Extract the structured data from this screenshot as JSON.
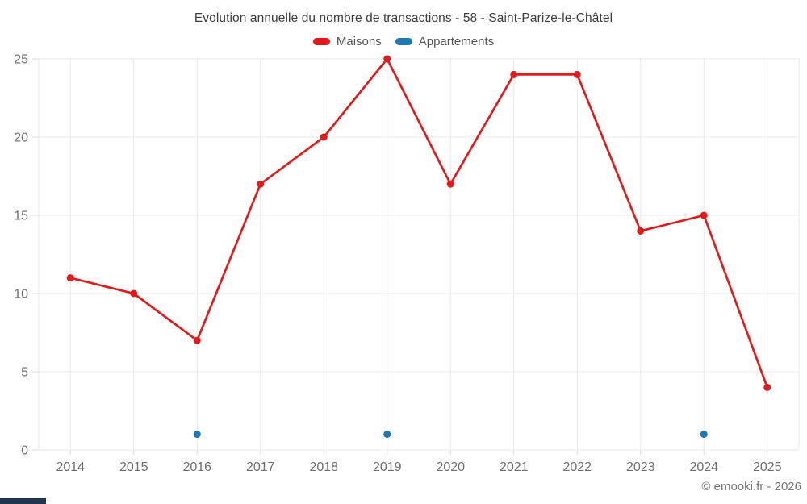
{
  "chart": {
    "title": "Evolution annuelle du nombre de transactions - 58 - Saint-Parize-le-Châtel"
  },
  "chart_data": {
    "type": "line",
    "title": "Evolution annuelle du nombre de transactions - 58 - Saint-Parize-le-Châtel",
    "categories": [
      "2014",
      "2015",
      "2016",
      "2017",
      "2018",
      "2019",
      "2020",
      "2021",
      "2022",
      "2023",
      "2024",
      "2025"
    ],
    "series": [
      {
        "name": "Maisons",
        "color": "#e31a1c",
        "style": "line+markers",
        "values": [
          11,
          10,
          7,
          17,
          20,
          25,
          17,
          24,
          24,
          14,
          15,
          4
        ]
      },
      {
        "name": "Appartements",
        "color": "#1f78b4",
        "style": "markers",
        "values": [
          null,
          null,
          1,
          null,
          null,
          1,
          null,
          null,
          null,
          null,
          1,
          null
        ]
      }
    ],
    "xlabel": "",
    "ylabel": "",
    "ylim": [
      0,
      25
    ],
    "yticks": [
      0,
      5,
      10,
      15,
      20,
      25
    ],
    "grid": true,
    "legend_position": "top"
  },
  "colors": {
    "maisons": "#e31a1c",
    "appartements": "#1f78b4",
    "grid": "#e9e9e9",
    "tick": "#dcdcdc",
    "axis_label": "#6e6e6e",
    "title": "#3d3d3d",
    "legend_label": "#555555",
    "copyright": "#757575",
    "scrollbar": "#24354b"
  },
  "footer": {
    "copyright": "© emooki.fr - 2026"
  }
}
